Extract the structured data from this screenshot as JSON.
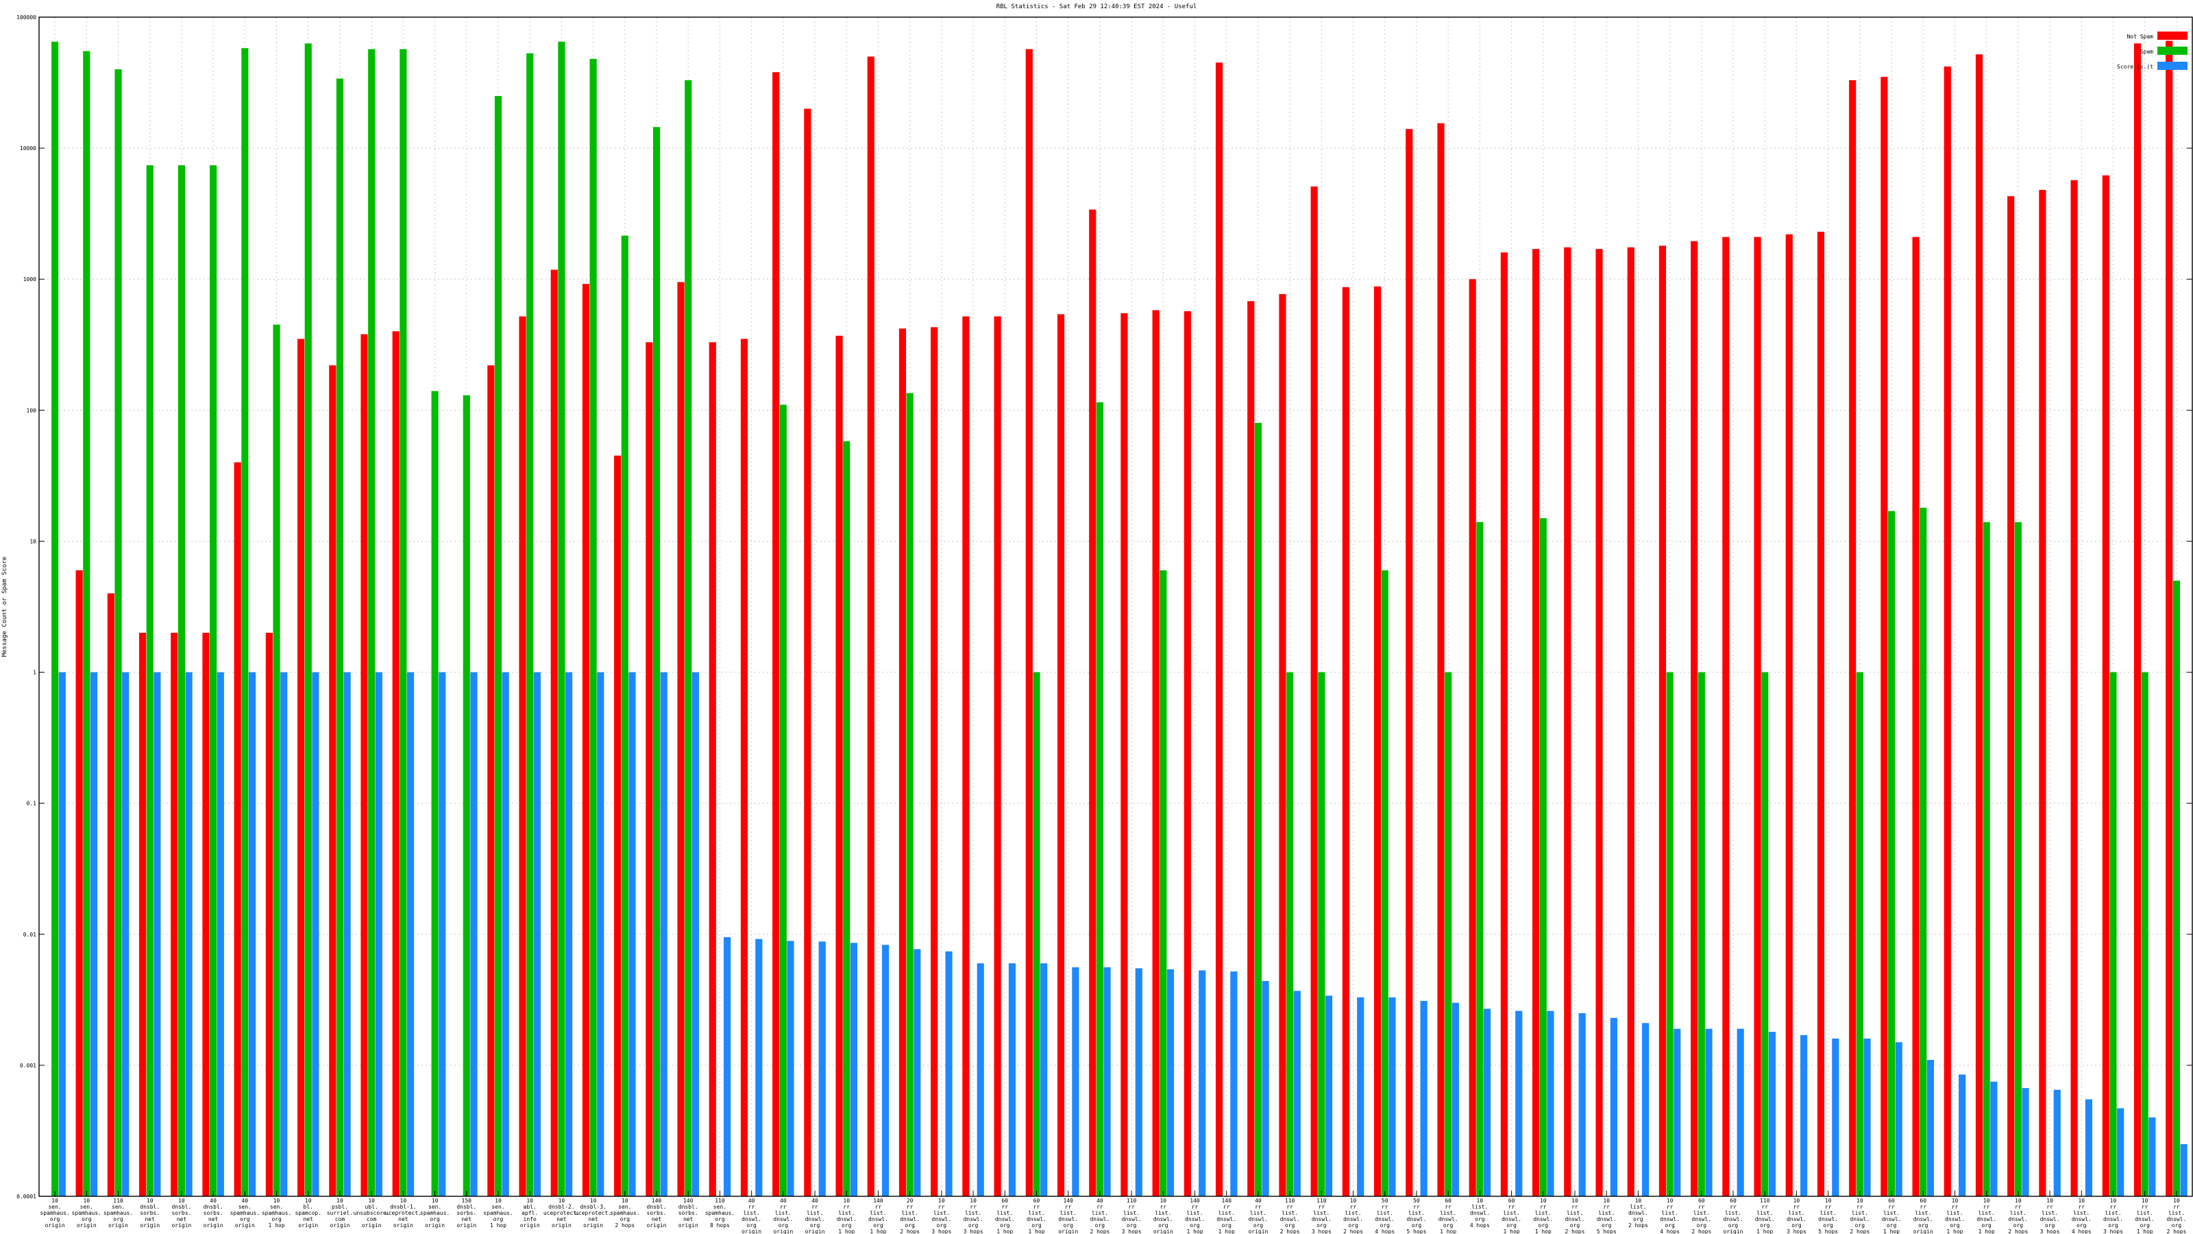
{
  "chart_data": {
    "type": "bar",
    "title": "RBL Statistics - Sat Feb 29 12:40:39 EST 2024 - Useful",
    "xlabel": "",
    "ylabel": "Message Count or Spam Score",
    "yscale": "log",
    "ylim": [
      0.0001,
      100000
    ],
    "yticks": [
      "0.0001",
      "0.001",
      "0.01",
      "0.1",
      "1",
      "10",
      "100",
      "1000",
      "10000",
      "100000"
    ],
    "grid": true,
    "legend_position": "top-right",
    "categories": [
      "10\nsen.\nspamhaus.\norg\norigin",
      "10\nsen.\nspamhaus.\norg\norigin",
      "110\nsen.\nspamhaus.\norg\norigin",
      "10\ndnsbl.\nsorbs.\nnet\norigin",
      "10\ndnsbl.\nsorbs.\nnet\norigin",
      "40\ndnsbl.\nsorbs.\nnet\norigin",
      "40\nsen.\nspamhaus.\norg\norigin",
      "10\nsen.\nspamhaus.\norg\n1 hop",
      "10\nbl.\nspamcop.\nnet\norigin",
      "10\npsbl.\nsurriel.\ncom\norigin",
      "10\nubl.\nunsubscore.\ncom\norigin",
      "10\ndnsbl-1.\nuceprotect.\nnet\norigin",
      "10\nsen.\nspamhaus.\norg\norigin",
      "150\ndnsbl.\nsorbs.\nnet\norigin",
      "10\nsen.\nspamhaus.\norg\n1 hop",
      "10\nabl.\napfl.\ninfo\norigin",
      "10\ndnsbl-2.\nuceprotect.\nnet\norigin",
      "10\ndnsbl-3.\nuceprotect.\nnet\norigin",
      "10\nsen.\nspamhaus.\norg\n2 hops",
      "140\ndnsbl.\nsorbs.\nnet\norigin",
      "140\ndnsbl.\nsorbs.\nnet\norigin",
      "110\nsen.\nspamhaus.\norg\n8 hops",
      "40\nrr\nlist.\ndnswl.\norg\norigin",
      "40\nrr\nlist.\ndnswl.\norg\norigin",
      "40\nrr\nlist.\ndnswl.\norg\norigin",
      "10\nrr\nlist.\ndnswl.\norg\n1 hop",
      "140\nrr\nlist.\ndnswl.\norg\n1 hop",
      "20\nrr\nlist.\ndnswl.\norg\n2 hops",
      "10\nrr\nlist.\ndnswl.\norg\n3 hops",
      "10\nrr\nlist.\ndnswl.\norg\n3 hops",
      "60\nrr\nlist.\ndnswl.\norg\n1 hop",
      "60\nrr\nlist.\ndnswl.\norg\n1 hop",
      "140\nrr\nlist.\ndnswl.\norg\norigin",
      "40\nrr\nlist.\ndnswl.\norg\n2 hops",
      "110\nrr\nlist.\ndnswl.\norg\n3 hops",
      "10\nrr\nlist.\ndnswl.\norg\norigin",
      "140\nrr\nlist.\ndnswl.\norg\n1 hop",
      "140\nrr\nlist.\ndnswl.\norg\n1 hop",
      "40\nrr\nlist.\ndnswl.\norg\norigin",
      "110\nrr\nlist.\ndnswl.\norg\n2 hops",
      "110\nrr\nlist.\ndnswl.\norg\n3 hops",
      "10\nrr\nlist.\ndnswl.\norg\n2 hops",
      "50\nrr\nlist.\ndnswl.\norg\n4 hops",
      "50\nrr\nlist.\ndnswl.\norg\n5 hops",
      "60\nrr\nlist.\ndnswl.\norg\n1 hop",
      "10\nlist.\ndnswl.\norg\n4 hops",
      "60\nrr\nlist.\ndnswl.\norg\n1 hop",
      "10\nrr\nlist.\ndnswl.\norg\n1 hop",
      "10\nrr\nlist.\ndnswl.\norg\n2 hops",
      "10\nrr\nlist.\ndnswl.\norg\n5 hops",
      "10\nlist.\ndnswl.\norg\n2 hops",
      "10\nrr\nlist.\ndnswl.\norg\n4 hops",
      "60\nrr\nlist.\ndnswl.\norg\n2 hops",
      "60\nrr\nlist.\ndnswl.\norg\norigin",
      "110\nrr\nlist.\ndnswl.\norg\n1 hop",
      "10\nrr\nlist.\ndnswl.\norg\n3 hops",
      "10\nrr\nlist.\ndnswl.\norg\n5 hops",
      "10\nrr\nlist.\ndnswl.\norg\n2 hops",
      "60\nrr\nlist.\ndnswl.\norg\n1 hop",
      "60\nrr\nlist.\ndnswl.\norg\norigin",
      "10\nrr\nlist.\ndnswl.\norg\n1 hop",
      "10\nrr\nlist.\ndnswl.\norg\n1 hop",
      "10\nrr\nlist.\ndnswl.\norg\n2 hops",
      "10\nrr\nlist.\ndnswl.\norg\n3 hops",
      "10\nrr\nlist.\ndnswl.\norg\n4 hops",
      "10\nrr\nlist.\ndnswl.\norg\n3 hops",
      "10\nrr\nlist.\ndnswl.\norg\n1 hop",
      "10\nrr\nlist.\ndnswl.\norg\n2 hops"
    ],
    "series": [
      {
        "name": "Not Spam",
        "color": "#ff0000",
        "values": [
          null,
          6,
          4,
          2,
          2,
          2,
          40,
          2,
          350,
          220,
          380,
          400,
          null,
          null,
          220,
          520,
          1180,
          920,
          45,
          330,
          950,
          330,
          350,
          38000,
          20000,
          370,
          50000,
          420,
          430,
          520,
          520,
          57000,
          540,
          3400,
          550,
          580,
          570,
          45000,
          680,
          770,
          5100,
          870,
          880,
          14000,
          15500,
          1000,
          1600,
          1700,
          1750,
          1700,
          1750,
          1800,
          1950,
          2100,
          2100,
          2200,
          2300,
          33000,
          35000,
          2100,
          42000,
          52000,
          4300,
          4800,
          5700,
          6200,
          63000,
          66000
        ]
      },
      {
        "name": "Spam",
        "color": "#00bb00",
        "values": [
          65000,
          55000,
          40000,
          7400,
          7400,
          7400,
          58000,
          450,
          63000,
          34000,
          57000,
          57000,
          140,
          130,
          25000,
          53000,
          65000,
          48000,
          2150,
          14500,
          33000,
          null,
          null,
          110,
          null,
          58,
          null,
          135,
          null,
          null,
          null,
          1,
          null,
          115,
          null,
          6,
          null,
          null,
          80,
          1,
          1,
          null,
          6,
          null,
          1,
          14,
          null,
          15,
          null,
          null,
          null,
          1,
          1,
          null,
          1,
          null,
          null,
          1,
          17,
          18,
          null,
          14,
          14,
          null,
          null,
          1,
          1,
          5
        ]
      },
      {
        "name": "Score (s.(t",
        "color": "#1e88ff",
        "values": [
          1,
          1,
          1,
          1,
          1,
          1,
          1,
          1,
          1,
          1,
          1,
          1,
          1,
          1,
          1,
          1,
          1,
          1,
          1,
          1,
          1,
          0.0095,
          0.0092,
          0.0089,
          0.0088,
          0.0086,
          0.0083,
          0.0077,
          0.0074,
          0.006,
          0.006,
          0.006,
          0.0056,
          0.0056,
          0.0055,
          0.0054,
          0.0053,
          0.0052,
          0.0044,
          0.0037,
          0.0034,
          0.0033,
          0.0033,
          0.0031,
          0.003,
          0.0027,
          0.0026,
          0.0026,
          0.0025,
          0.0023,
          0.0021,
          0.0019,
          0.0019,
          0.0019,
          0.0018,
          0.0017,
          0.0016,
          0.0016,
          0.0015,
          0.0011,
          0.00085,
          0.00075,
          0.00067,
          0.00065,
          0.00055,
          0.00047,
          0.0004,
          0.00025
        ]
      }
    ]
  }
}
